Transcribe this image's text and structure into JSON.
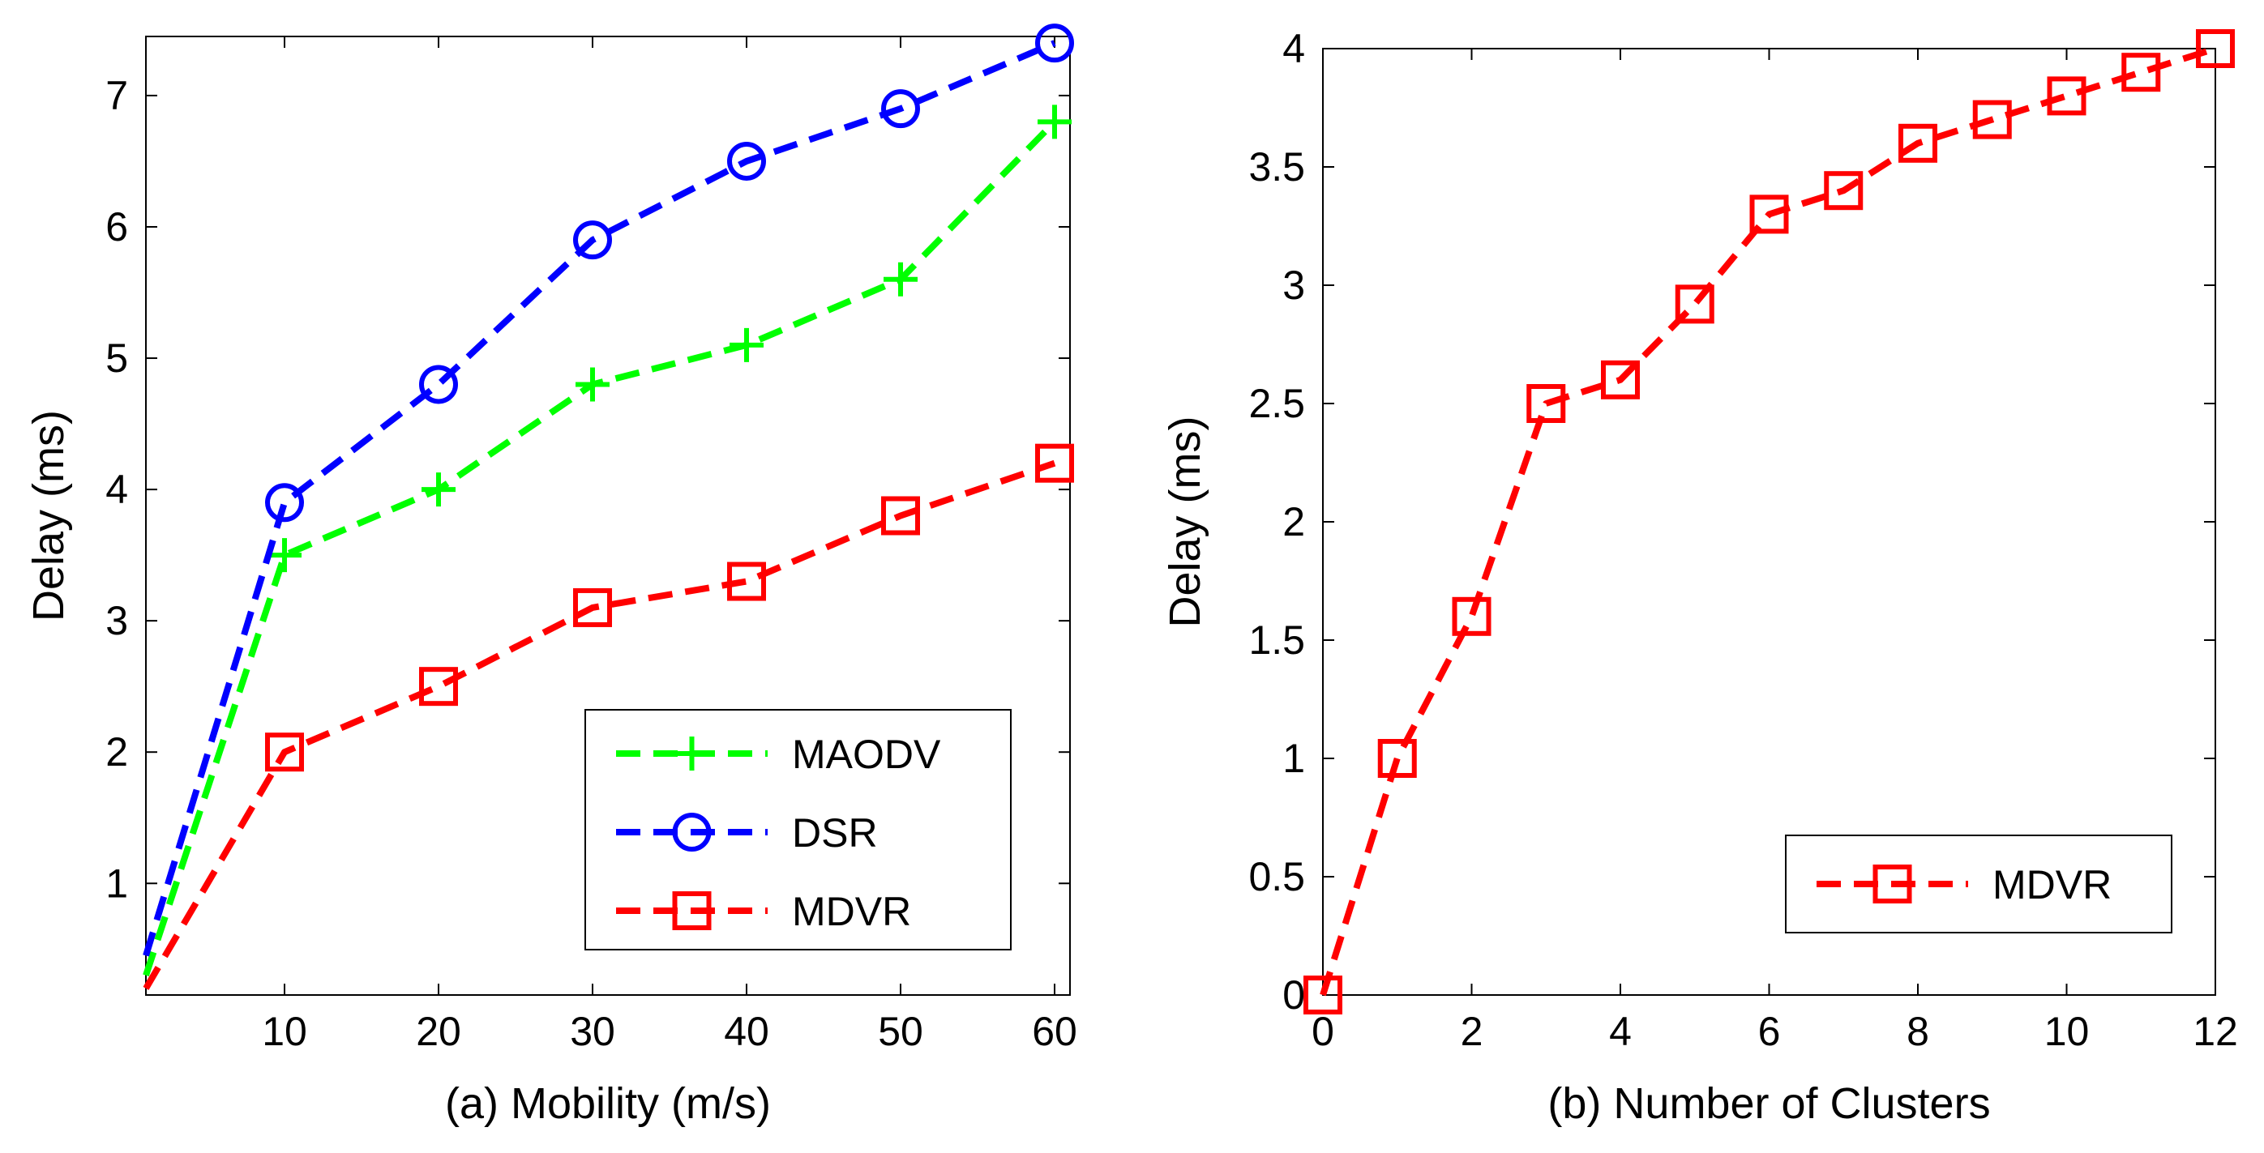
{
  "chart_data": [
    {
      "id": "a",
      "type": "line",
      "title": "",
      "xlabel": "(a) Mobility (m/s)",
      "ylabel": "Delay (ms)",
      "xlim": [
        1,
        61
      ],
      "ylim": [
        0.15,
        7.45
      ],
      "xticks": [
        10,
        20,
        30,
        40,
        50,
        60
      ],
      "yticks": [
        1,
        2,
        3,
        4,
        5,
        6,
        7
      ],
      "grid": false,
      "legend_position": "bottom-right",
      "series": [
        {
          "name": "MAODV",
          "color": "#00ff00",
          "marker": "plus",
          "x": [
            1,
            10,
            20,
            30,
            40,
            50,
            60
          ],
          "y": [
            0.3,
            3.5,
            4.0,
            4.8,
            5.1,
            5.6,
            6.8
          ]
        },
        {
          "name": "DSR",
          "color": "#0000ff",
          "marker": "circle",
          "x": [
            1,
            10,
            20,
            30,
            40,
            50,
            60
          ],
          "y": [
            0.45,
            3.9,
            4.8,
            5.9,
            6.5,
            6.9,
            7.4
          ]
        },
        {
          "name": "MDVR",
          "color": "#ff0000",
          "marker": "square",
          "x": [
            1,
            10,
            20,
            30,
            40,
            50,
            60
          ],
          "y": [
            0.2,
            2.0,
            2.5,
            3.1,
            3.3,
            3.8,
            4.2
          ]
        }
      ]
    },
    {
      "id": "b",
      "type": "line",
      "title": "",
      "xlabel": "(b) Number of Clusters",
      "ylabel": "Delay (ms)",
      "xlim": [
        0,
        12
      ],
      "ylim": [
        0,
        4
      ],
      "xticks": [
        0,
        2,
        4,
        6,
        8,
        10,
        12
      ],
      "yticks": [
        0,
        0.5,
        1,
        1.5,
        2,
        2.5,
        3,
        3.5,
        4
      ],
      "grid": false,
      "legend_position": "bottom-right",
      "series": [
        {
          "name": "MDVR",
          "color": "#ff0000",
          "marker": "square",
          "x": [
            0,
            1,
            2,
            3,
            4,
            5,
            6,
            7,
            8,
            9,
            10,
            11,
            12
          ],
          "y": [
            0,
            1.0,
            1.6,
            2.5,
            2.6,
            2.92,
            3.3,
            3.4,
            3.6,
            3.7,
            3.8,
            3.9,
            4.0
          ]
        }
      ]
    }
  ]
}
